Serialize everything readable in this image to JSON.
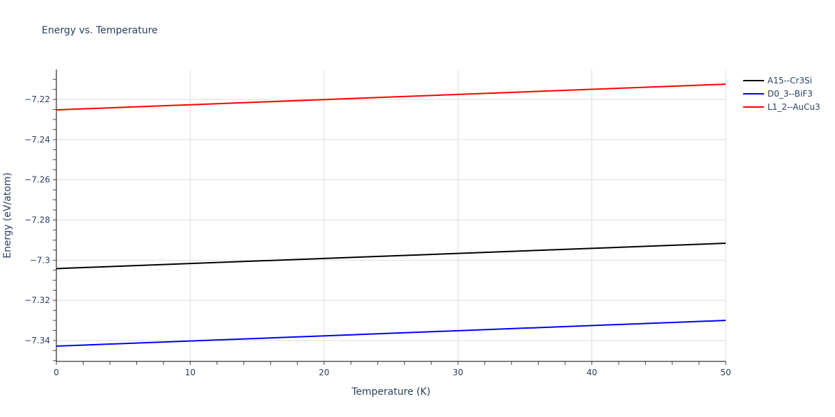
{
  "chart_data": {
    "type": "line",
    "title": "Energy vs. Temperature",
    "xlabel": "Temperature (K)",
    "ylabel": "Energy (eV/atom)",
    "xlim": [
      0,
      50
    ],
    "ylim": [
      -7.3504,
      -7.2051
    ],
    "x_ticks": [
      0,
      10,
      20,
      30,
      40,
      50
    ],
    "y_ticks": [
      -7.34,
      -7.32,
      -7.3,
      -7.28,
      -7.26,
      -7.24,
      -7.22
    ],
    "y_tick_labels": [
      "−7.34",
      "−7.32",
      "−7.3",
      "−7.28",
      "−7.26",
      "−7.24",
      "−7.22"
    ],
    "grid": true,
    "legend_position": "right-top",
    "series": [
      {
        "name": "A15--Cr3Si",
        "color": "#000000",
        "x": [
          0,
          50
        ],
        "values": [
          -7.3042,
          -7.2916
        ]
      },
      {
        "name": "D0_3--BiF3",
        "color": "#0000ff",
        "x": [
          0,
          50
        ],
        "values": [
          -7.3428,
          -7.33
        ]
      },
      {
        "name": "L1_2--AuCu3",
        "color": "#ff0000",
        "x": [
          0,
          50
        ],
        "values": [
          -7.2252,
          -7.2124
        ]
      }
    ]
  }
}
